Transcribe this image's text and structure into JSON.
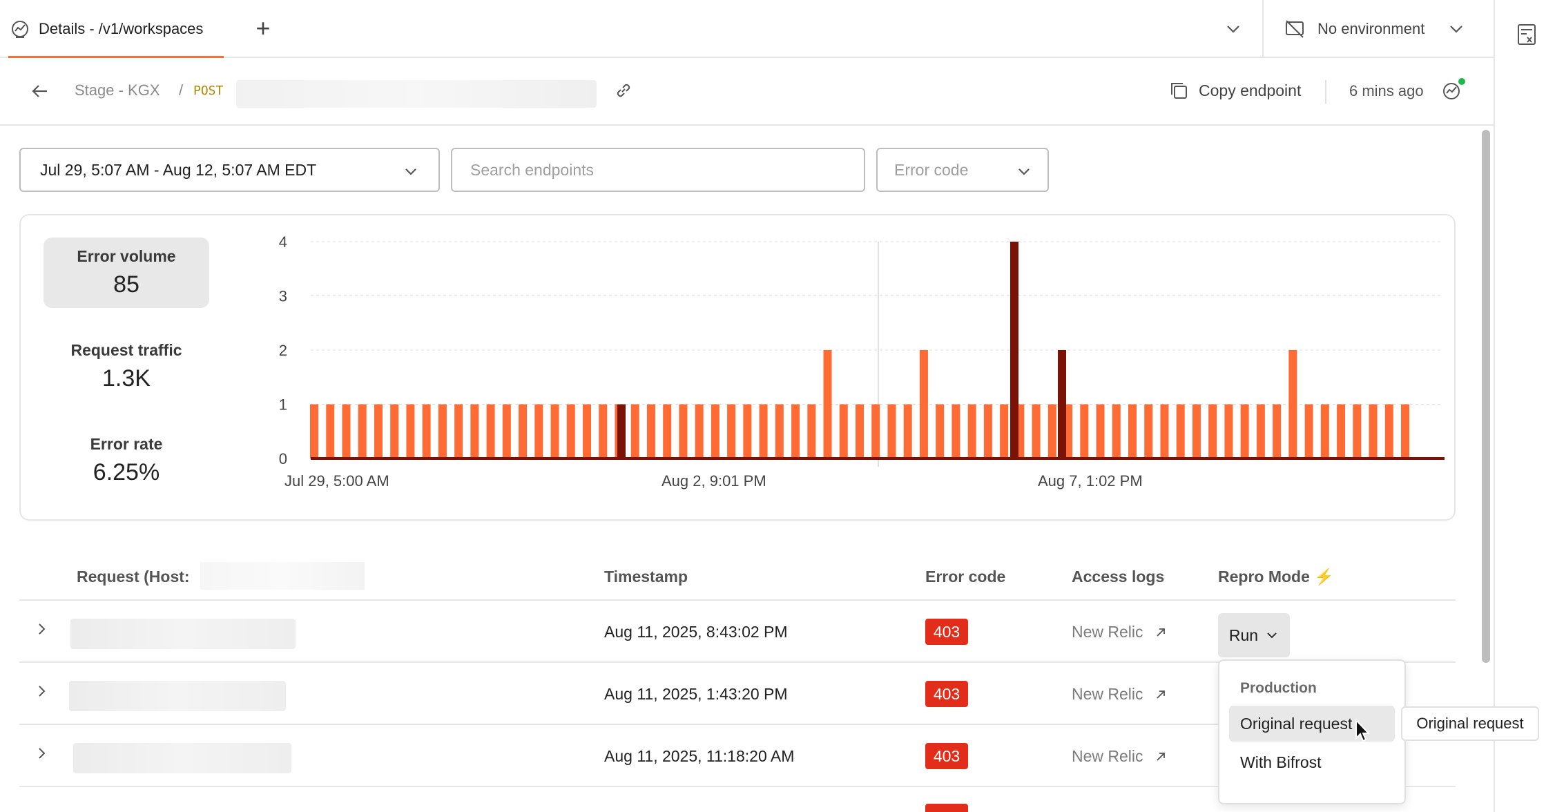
{
  "tab": {
    "title": "Details - /v1/workspaces"
  },
  "environment": {
    "label": "No environment"
  },
  "breadcrumb": {
    "workspace": "Stage - KGX",
    "separator": "/",
    "method": "POST"
  },
  "header": {
    "copy_label": "Copy endpoint",
    "updated": "6 mins ago"
  },
  "filters": {
    "date_range": "Jul 29, 5:07 AM - Aug 12, 5:07 AM EDT",
    "search_placeholder": "Search endpoints",
    "error_code_placeholder": "Error code"
  },
  "metrics": {
    "error_volume_label": "Error volume",
    "error_volume": "85",
    "traffic_label": "Request traffic",
    "traffic": "1.3K",
    "error_rate_label": "Error rate",
    "error_rate": "6.25%"
  },
  "colors": {
    "bar": "#ff6b35",
    "bar_dark": "#7a1206",
    "badge": "#e22d1b",
    "accent": "#ff6c37"
  },
  "chart_data": {
    "type": "bar",
    "ylim": [
      0,
      4
    ],
    "yticks": [
      "0",
      "1",
      "2",
      "3",
      "4"
    ],
    "xticks": [
      "Jul 29, 5:00 AM",
      "Aug 2, 9:01 PM",
      "Aug 7, 1:02 PM"
    ],
    "grid": true,
    "series": [
      {
        "values": [
          1,
          1,
          1,
          1,
          1,
          1,
          1,
          1,
          1,
          1,
          1,
          1,
          1,
          1,
          1,
          1,
          1,
          1,
          1,
          1,
          1,
          1,
          1,
          1,
          1,
          1,
          1,
          1,
          1,
          1,
          1,
          1,
          2,
          1,
          1,
          1,
          1,
          1,
          2,
          1,
          1,
          1,
          1,
          1,
          1,
          1,
          1,
          1,
          1,
          1,
          1,
          1,
          1,
          1,
          1,
          1,
          1,
          1,
          1,
          1,
          1,
          2,
          1,
          1,
          1,
          1,
          1,
          1,
          1
        ]
      },
      {
        "values": [
          1,
          4,
          2
        ]
      }
    ]
  },
  "table": {
    "headers": {
      "request": "Request (Host:",
      "timestamp": "Timestamp",
      "error_code": "Error code",
      "access_logs": "Access logs",
      "repro_mode": "Repro Mode",
      "repro_icon": "⚡"
    },
    "rows": [
      {
        "timestamp": "Aug 11, 2025, 8:43:02 PM",
        "code": "403",
        "logs": "New Relic"
      },
      {
        "timestamp": "Aug 11, 2025, 1:43:20 PM",
        "code": "403",
        "logs": "New Relic"
      },
      {
        "timestamp": "Aug 11, 2025, 11:18:20 AM",
        "code": "403",
        "logs": "New Relic"
      }
    ],
    "run_label": "Run"
  },
  "menu": {
    "section": "Production",
    "items": [
      "Original request",
      "With Bifrost"
    ],
    "tooltip": "Original request"
  }
}
